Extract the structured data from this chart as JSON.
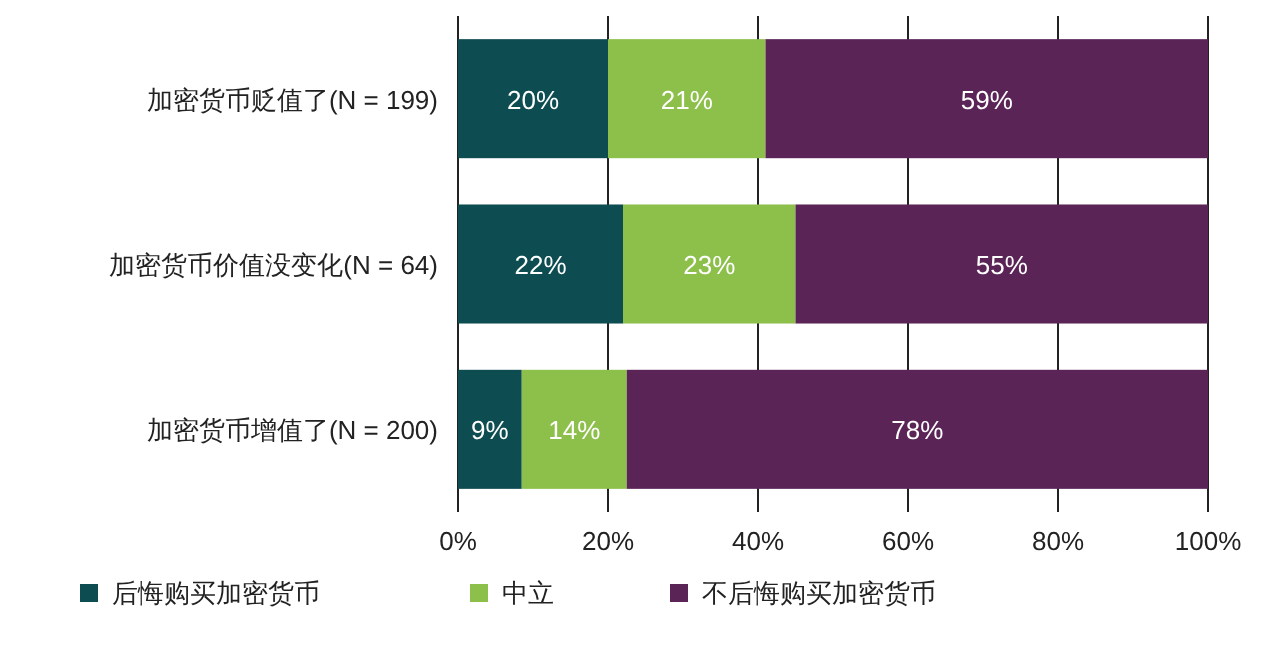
{
  "chart_data": {
    "type": "bar",
    "orientation": "horizontal",
    "stacked": true,
    "categories": [
      "加密货币贬值了(N = 199)",
      "加密货币价值没变化(N = 64)",
      "加密货币增值了(N = 200)"
    ],
    "series": [
      {
        "name": "后悔购买加密货币",
        "color": "#0d4d52",
        "values": [
          20,
          22,
          8.5
        ]
      },
      {
        "name": "中立",
        "color": "#8dbf4b",
        "values": [
          21,
          23,
          14
        ]
      },
      {
        "name": "不后悔购买加密货币",
        "color": "#5b2457",
        "values": [
          59,
          55,
          77.5
        ]
      }
    ],
    "xlim": [
      0,
      100
    ],
    "xticks": [
      {
        "value": 0,
        "label": "0%"
      },
      {
        "value": 20,
        "label": "20%"
      },
      {
        "value": 40,
        "label": "40%"
      },
      {
        "value": 60,
        "label": "60%"
      },
      {
        "value": 80,
        "label": "80%"
      },
      {
        "value": 100,
        "label": "100%"
      }
    ],
    "value_labels": [
      [
        "20%",
        "22%",
        "9%"
      ],
      [
        "21%",
        "23%",
        "14%"
      ],
      [
        "59%",
        "55%",
        "78%"
      ]
    ],
    "grid": "x",
    "legend": "bottom"
  }
}
